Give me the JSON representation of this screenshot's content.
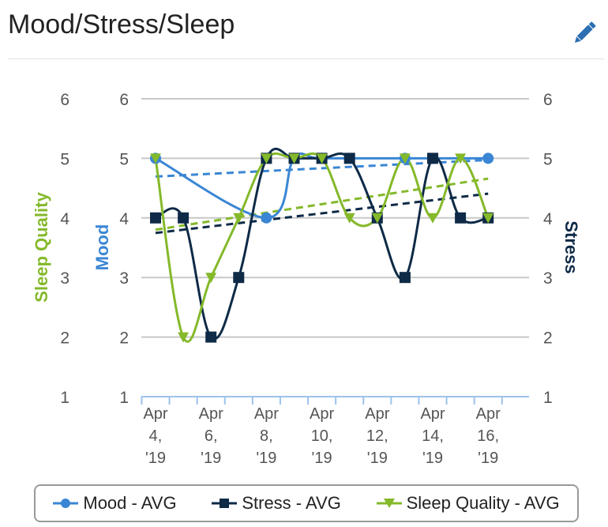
{
  "header": {
    "title": "Mood/Stress/Sleep",
    "edit_icon": "pencil-icon"
  },
  "colors": {
    "mood": "#3a86d4",
    "stress": "#0e2a47",
    "sleep": "#84b92a",
    "grid": "#c8c8c8",
    "xaxis": "#9cc3ec"
  },
  "chart_data": {
    "type": "line",
    "title": "",
    "x": [
      "Apr 4, '19",
      "Apr 5, '19",
      "Apr 6, '19",
      "Apr 7, '19",
      "Apr 8, '19",
      "Apr 9, '19",
      "Apr 10, '19",
      "Apr 11, '19",
      "Apr 12, '19",
      "Apr 13, '19",
      "Apr 14, '19",
      "Apr 15, '19",
      "Apr 16, '19"
    ],
    "x_tick_labels": [
      [
        "Apr",
        "4,",
        "'19"
      ],
      [
        "Apr",
        "6,",
        "'19"
      ],
      [
        "Apr",
        "8,",
        "'19"
      ],
      [
        "Apr",
        "10,",
        "'19"
      ],
      [
        "Apr",
        "12,",
        "'19"
      ],
      [
        "Apr",
        "14,",
        "'19"
      ],
      [
        "Apr",
        "16,",
        "'19"
      ]
    ],
    "y_ticks": [
      1,
      2,
      3,
      4,
      5,
      6
    ],
    "ylim": [
      1,
      6
    ],
    "axes": {
      "left_outer": "Sleep Quality",
      "left_inner": "Mood",
      "right": "Stress"
    },
    "trendlines": true,
    "grid": true,
    "legend_position": "bottom",
    "series": [
      {
        "name": "Mood - AVG",
        "marker": "circle",
        "line": "solid",
        "points": [
          [
            0,
            5
          ],
          [
            4,
            4
          ],
          [
            5,
            5
          ],
          [
            6,
            5
          ],
          [
            9,
            5
          ],
          [
            12,
            5
          ]
        ]
      },
      {
        "name": "Stress - AVG",
        "marker": "square",
        "points": [
          [
            0,
            4
          ],
          [
            1,
            4
          ],
          [
            2,
            2
          ],
          [
            3,
            3
          ],
          [
            4,
            5
          ],
          [
            5,
            5
          ],
          [
            6,
            5
          ],
          [
            7,
            5
          ],
          [
            8,
            4
          ],
          [
            9,
            3
          ],
          [
            10,
            5
          ],
          [
            11,
            4
          ],
          [
            12,
            4
          ]
        ]
      },
      {
        "name": "Sleep Quality - AVG",
        "marker": "triangle-down",
        "points": [
          [
            0,
            5
          ],
          [
            1,
            2
          ],
          [
            2,
            3
          ],
          [
            3,
            4
          ],
          [
            4,
            5
          ],
          [
            5,
            5
          ],
          [
            6,
            5
          ],
          [
            7,
            4
          ],
          [
            8,
            4
          ],
          [
            9,
            5
          ],
          [
            10,
            4
          ],
          [
            11,
            5
          ],
          [
            12,
            4
          ]
        ]
      }
    ]
  },
  "legend": {
    "mood": "Mood - AVG",
    "stress": "Stress - AVG",
    "sleep": "Sleep Quality - AVG"
  }
}
